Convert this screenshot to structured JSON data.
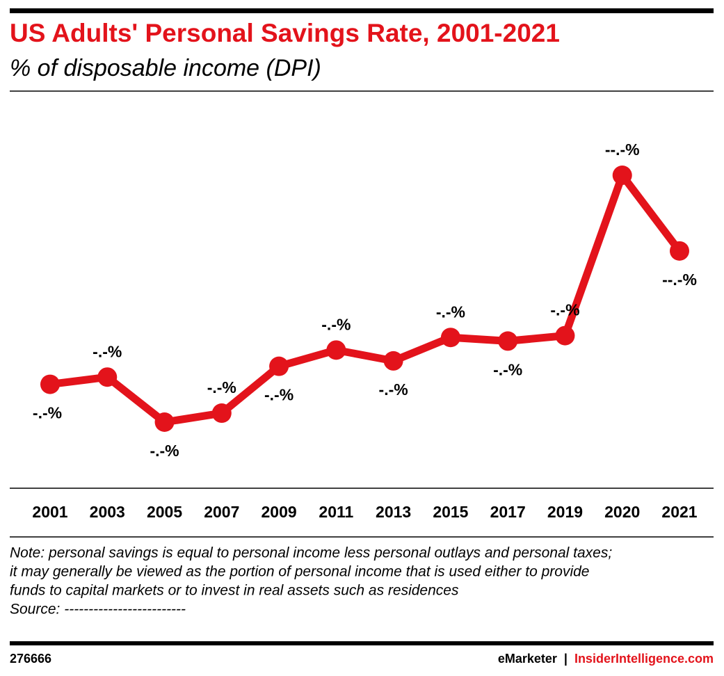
{
  "chart_data": {
    "type": "line",
    "title": "US Adults' Personal Savings Rate, 2001-2021",
    "subtitle": "% of disposable income (DPI)",
    "categories": [
      "2001",
      "2003",
      "2005",
      "2007",
      "2009",
      "2011",
      "2013",
      "2015",
      "2017",
      "2019",
      "2020",
      "2021"
    ],
    "series": [
      {
        "color": "#e3131b",
        "values": [
          4.8,
          5.2,
          2.7,
          3.2,
          5.8,
          6.7,
          6.1,
          7.4,
          7.2,
          7.5,
          16.4,
          12.2
        ],
        "value_labels": [
          "-.-%",
          "-.-%",
          "-.-%",
          "-.-%",
          "-.-%",
          "-.-%",
          "-.-%",
          "-.-%",
          "-.-%",
          "-.-%",
          "--.-%",
          "--.-%"
        ]
      }
    ],
    "note": [
      "Note: personal savings is equal to personal income less personal outlays and personal taxes;",
      "it may generally be viewed as the portion of personal income that is used either to provide",
      "funds to capital markets or to invest in real assets such as residences"
    ],
    "source": "Source: -------------------------",
    "chart_id": "276666",
    "brand": "eMarketer",
    "separator": "|",
    "site": "InsiderIntelligence.com"
  }
}
